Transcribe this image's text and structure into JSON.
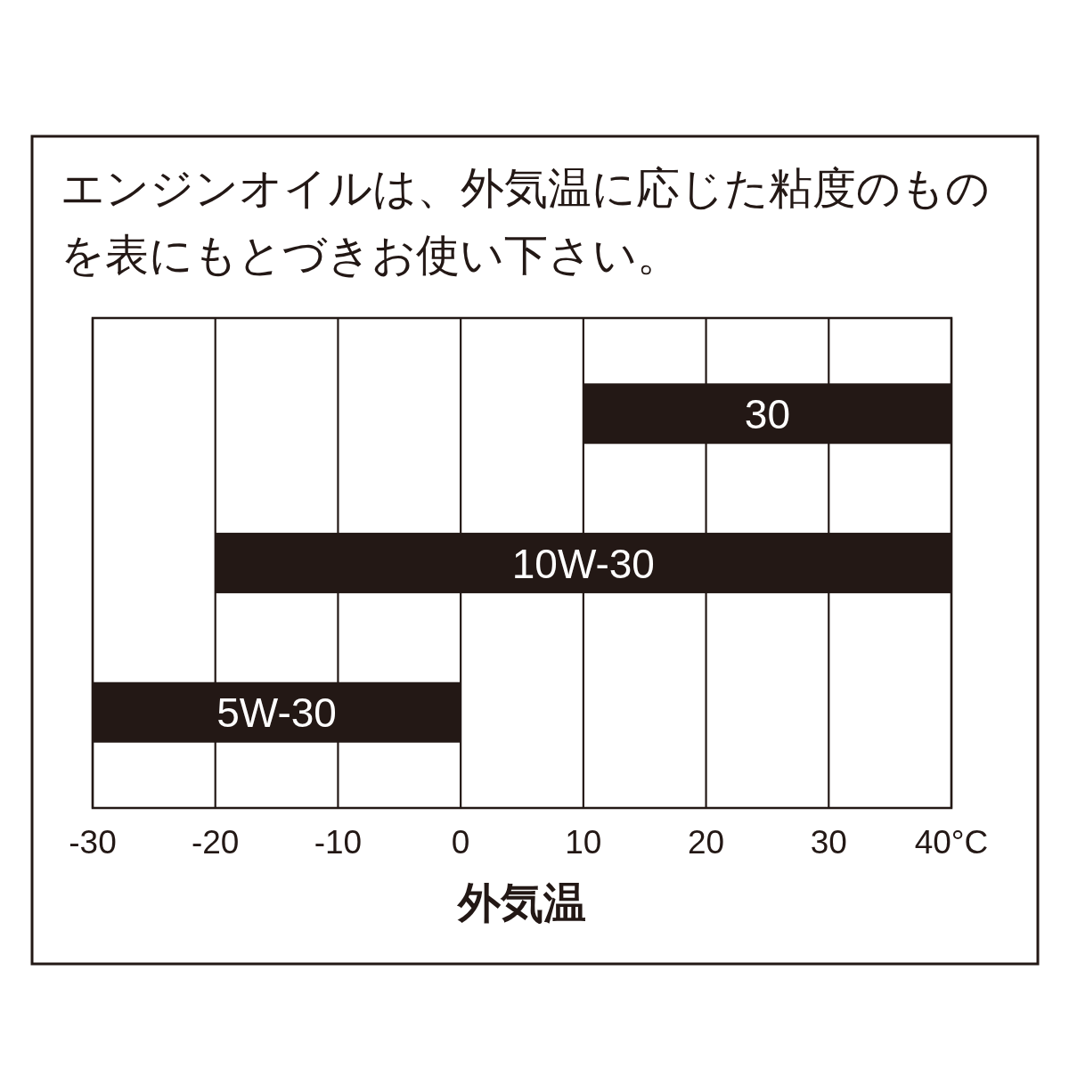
{
  "chart_data": {
    "type": "bar",
    "orientation": "horizontal",
    "title": "エンジンオイルは、外気温に応じた粘度のものを表にもとづきお使い下さい。",
    "xlabel": "外気温",
    "categories": [
      "30",
      "10W-30",
      "5W-30"
    ],
    "base": [
      10,
      -20,
      -30
    ],
    "values": [
      30,
      60,
      30
    ],
    "color": "#231815",
    "xlim": [
      -30,
      40
    ],
    "xticks": [
      -30,
      -20,
      -10,
      0,
      10,
      20,
      30,
      {
        "value": 40,
        "label": "40°C"
      }
    ],
    "grid": "x"
  }
}
